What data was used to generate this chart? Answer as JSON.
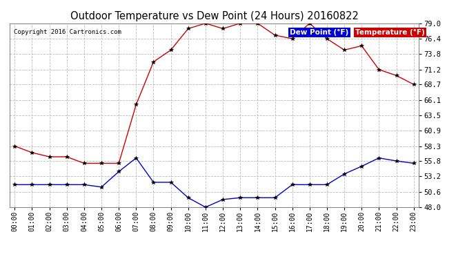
{
  "title": "Outdoor Temperature vs Dew Point (24 Hours) 20160822",
  "copyright": "Copyright 2016 Cartronics.com",
  "hours": [
    "00:00",
    "01:00",
    "02:00",
    "03:00",
    "04:00",
    "05:00",
    "06:00",
    "07:00",
    "08:00",
    "09:00",
    "10:00",
    "11:00",
    "12:00",
    "13:00",
    "14:00",
    "15:00",
    "16:00",
    "17:00",
    "18:00",
    "19:00",
    "20:00",
    "21:00",
    "22:00",
    "23:00"
  ],
  "temperature": [
    58.3,
    57.2,
    56.5,
    56.5,
    55.4,
    55.4,
    55.4,
    65.3,
    72.5,
    74.5,
    78.1,
    79.0,
    78.1,
    79.0,
    79.0,
    77.0,
    76.4,
    79.0,
    76.4,
    74.5,
    75.2,
    71.2,
    70.2,
    68.7
  ],
  "dew_point": [
    51.8,
    51.8,
    51.8,
    51.8,
    51.8,
    51.4,
    54.0,
    56.3,
    52.2,
    52.2,
    49.6,
    48.0,
    49.3,
    49.6,
    49.6,
    49.6,
    51.8,
    51.8,
    51.8,
    53.6,
    54.9,
    56.3,
    55.8,
    55.4
  ],
  "temp_color": "#cc0000",
  "dew_color": "#0000cc",
  "bg_color": "#ffffff",
  "grid_color": "#bbbbbb",
  "ylim": [
    48.0,
    79.0
  ],
  "yticks": [
    48.0,
    50.6,
    53.2,
    55.8,
    58.3,
    60.9,
    63.5,
    66.1,
    68.7,
    71.2,
    73.8,
    76.4,
    79.0
  ],
  "legend_dew_bg": "#0000cc",
  "legend_temp_bg": "#cc0000",
  "legend_text_dew": "Dew Point (°F)",
  "legend_text_temp": "Temperature (°F)"
}
